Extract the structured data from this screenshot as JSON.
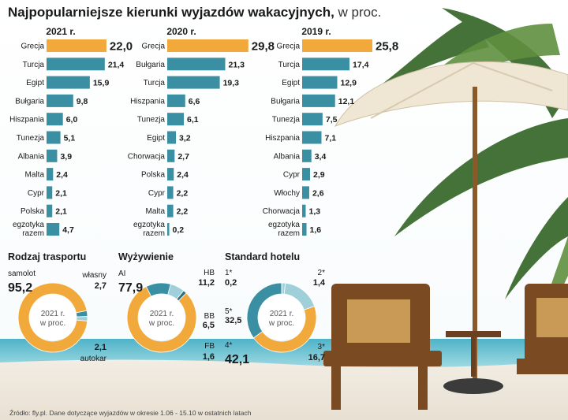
{
  "title": "Najpopularniejsze kierunki wyjazdów wakacyjnych,",
  "title_unit": "w proc.",
  "colors": {
    "highlight": "#f2a93b",
    "teal": "#3a8fa3",
    "light_teal": "#9fcfd8",
    "donut_orange": "#f2a93b"
  },
  "chart_data": [
    {
      "type": "bar",
      "panel": "2021 r.",
      "categories": [
        "Grecja",
        "Turcja",
        "Egipt",
        "Bułgaria",
        "Hiszpania",
        "Tunezja",
        "Albania",
        "Malta",
        "Cypr",
        "Polska",
        "egzotyka razem"
      ],
      "values": [
        22.0,
        21.4,
        15.9,
        9.8,
        6.0,
        5.1,
        3.9,
        2.4,
        2.1,
        2.1,
        4.7
      ],
      "value_labels": [
        "22,0",
        "21,4",
        "15,9",
        "9,8",
        "6,0",
        "5,1",
        "3,9",
        "2,4",
        "2,1",
        "2,1",
        "4,7"
      ],
      "highlight_index": 0
    },
    {
      "type": "bar",
      "panel": "2020 r.",
      "categories": [
        "Grecja",
        "Bułgaria",
        "Turcja",
        "Hiszpania",
        "Tunezja",
        "Egipt",
        "Chorwacja",
        "Polska",
        "Cypr",
        "Malta",
        "egzotyka razem"
      ],
      "values": [
        29.8,
        21.3,
        19.3,
        6.6,
        6.1,
        3.2,
        2.7,
        2.4,
        2.2,
        2.2,
        0.2
      ],
      "value_labels": [
        "29,8",
        "21,3",
        "19,3",
        "6,6",
        "6,1",
        "3,2",
        "2,7",
        "2,4",
        "2,2",
        "2,2",
        "0,2"
      ],
      "highlight_index": 0
    },
    {
      "type": "bar",
      "panel": "2019 r.",
      "categories": [
        "Grecja",
        "Turcja",
        "Egipt",
        "Bułgaria",
        "Tunezja",
        "Hiszpania",
        "Albania",
        "Cypr",
        "Włochy",
        "Chorwacja",
        "egzotyka razem"
      ],
      "values": [
        25.8,
        17.4,
        12.9,
        12.1,
        7.5,
        7.1,
        3.4,
        2.9,
        2.6,
        1.3,
        1.6
      ],
      "value_labels": [
        "25,8",
        "17,4",
        "12,9",
        "12,1",
        "7,5",
        "7,1",
        "3,4",
        "2,9",
        "2,6",
        "1,3",
        "1,6"
      ],
      "highlight_index": 0
    },
    {
      "type": "pie",
      "title": "Rodzaj trasportu",
      "center": "2021 r. w proc.",
      "slices": [
        {
          "name": "samolot",
          "value": 95.2,
          "label": "95,2",
          "color": "#f2a93b"
        },
        {
          "name": "własny",
          "value": 2.7,
          "label": "2,7",
          "color": "#3a8fa3"
        },
        {
          "name": "autokar",
          "value": 2.1,
          "label": "2,1",
          "color": "#9fcfd8"
        }
      ]
    },
    {
      "type": "pie",
      "title": "Wyżywienie",
      "center": "2021 r. w proc.",
      "slices": [
        {
          "name": "AI",
          "value": 77.9,
          "label": "77,9",
          "color": "#f2a93b"
        },
        {
          "name": "HB",
          "value": 11.2,
          "label": "11,2",
          "color": "#3a8fa3"
        },
        {
          "name": "BB",
          "value": 6.5,
          "label": "6,5",
          "color": "#9fcfd8"
        },
        {
          "name": "FB",
          "value": 1.6,
          "label": "1,6",
          "color": "#2f6f80"
        }
      ]
    },
    {
      "type": "pie",
      "title": "Standard hotelu",
      "center": "2021 r. w proc.",
      "slices": [
        {
          "name": "1*",
          "value": 0.2,
          "label": "0,2",
          "color": "#2f6f80"
        },
        {
          "name": "2*",
          "value": 1.4,
          "label": "1,4",
          "color": "#9fcfd8"
        },
        {
          "name": "3*",
          "value": 16.7,
          "label": "16,7",
          "color": "#9fcfd8"
        },
        {
          "name": "4*",
          "value": 42.1,
          "label": "42,1",
          "color": "#f2a93b"
        },
        {
          "name": "5*",
          "value": 32.5,
          "label": "32,5",
          "color": "#3a8fa3"
        }
      ]
    }
  ],
  "source": "Źródło: fly.pl. Dane dotyczące wyjazdów w okresie 1.06 - 15.10 w ostatnich latach"
}
